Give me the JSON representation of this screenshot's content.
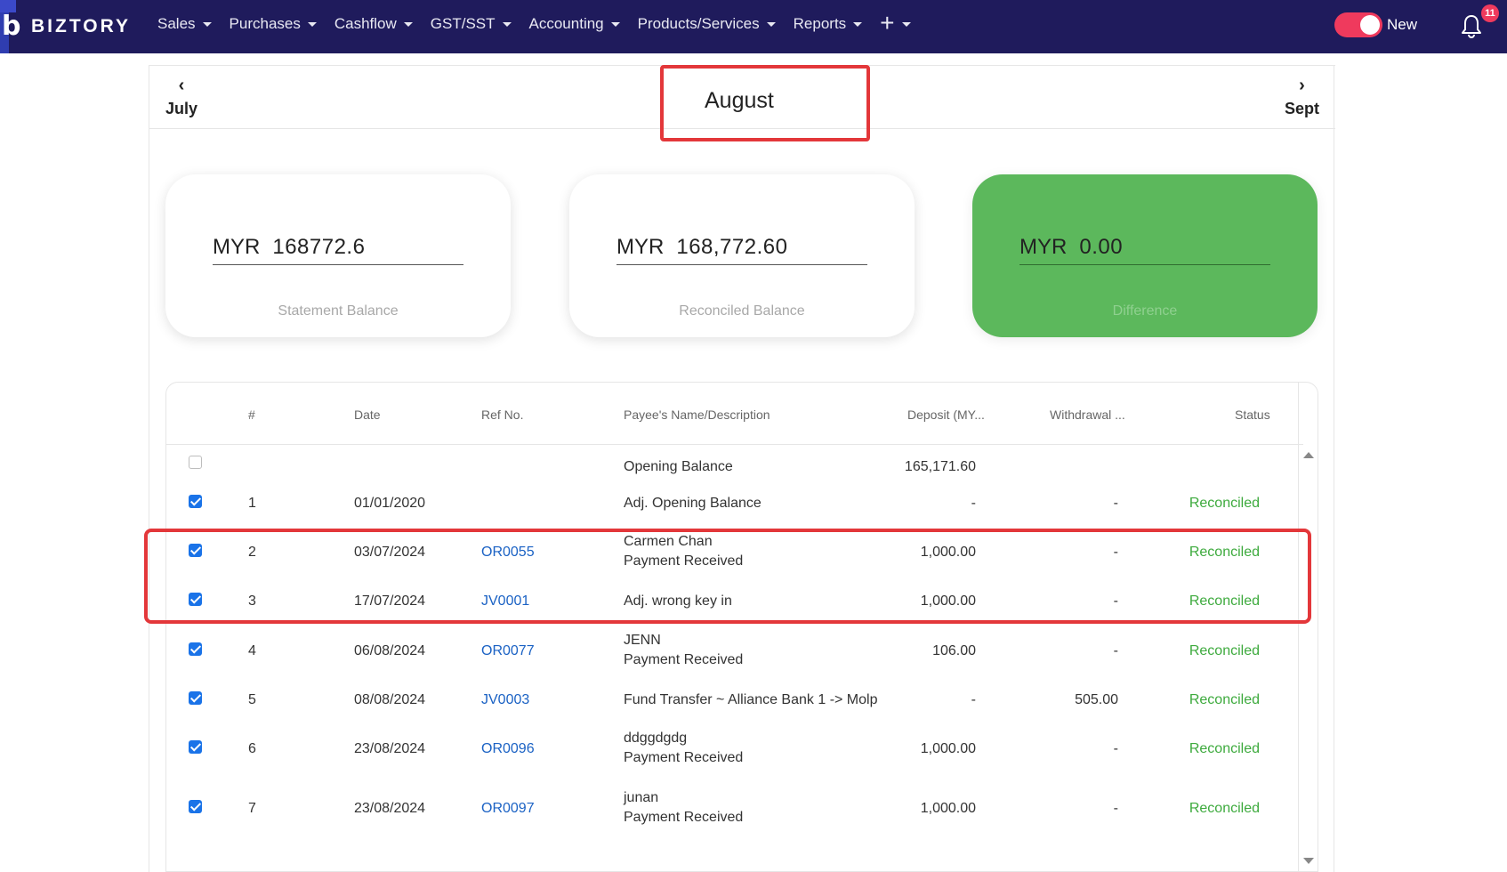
{
  "brand": {
    "name": "BIZTORY"
  },
  "nav": {
    "items": [
      {
        "label": "Sales"
      },
      {
        "label": "Purchases"
      },
      {
        "label": "Cashflow"
      },
      {
        "label": "GST/SST"
      },
      {
        "label": "Accounting"
      },
      {
        "label": "Products/Services"
      },
      {
        "label": "Reports"
      }
    ],
    "add_icon": "plus-icon",
    "toggle_label": "New",
    "notification_count": "11",
    "accent_color": "#ef3a5d",
    "bar_color": "#1f1b5c"
  },
  "months": {
    "prev": "July",
    "current": "August",
    "next": "Sept"
  },
  "cards": {
    "statement": {
      "currency": "MYR",
      "amount": "168772.6",
      "caption": "Statement Balance"
    },
    "reconciled": {
      "currency": "MYR",
      "amount": "168,772.60",
      "caption": "Reconciled Balance"
    },
    "difference": {
      "currency": "MYR",
      "amount": "0.00",
      "caption": "Difference",
      "color": "#5cb85c"
    }
  },
  "table": {
    "headers": {
      "num": "#",
      "date": "Date",
      "ref": "Ref No.",
      "payee": "Payee's Name/Description",
      "deposit": "Deposit (MY...",
      "withdrawal": "Withdrawal ...",
      "status": "Status"
    },
    "rows": [
      {
        "checked": false,
        "num": "",
        "date": "",
        "ref": "",
        "desc1": "Opening Balance",
        "desc2": "",
        "deposit": "165,171.60",
        "withdrawal": "",
        "status": ""
      },
      {
        "checked": true,
        "num": "1",
        "date": "01/01/2020",
        "ref": "",
        "desc1": "Adj. Opening Balance",
        "desc2": "",
        "deposit": "-",
        "withdrawal": "-",
        "status": "Reconciled"
      },
      {
        "checked": true,
        "num": "2",
        "date": "03/07/2024",
        "ref": "OR0055",
        "desc1": "Carmen Chan",
        "desc2": "Payment Received",
        "deposit": "1,000.00",
        "withdrawal": "-",
        "status": "Reconciled"
      },
      {
        "checked": true,
        "num": "3",
        "date": "17/07/2024",
        "ref": "JV0001",
        "desc1": "Adj. wrong key in",
        "desc2": "",
        "deposit": "1,000.00",
        "withdrawal": "-",
        "status": "Reconciled"
      },
      {
        "checked": true,
        "num": "4",
        "date": "06/08/2024",
        "ref": "OR0077",
        "desc1": "JENN",
        "desc2": "Payment Received",
        "deposit": "106.00",
        "withdrawal": "-",
        "status": "Reconciled"
      },
      {
        "checked": true,
        "num": "5",
        "date": "08/08/2024",
        "ref": "JV0003",
        "desc1": "Fund Transfer ~ Alliance Bank 1 -> Molp",
        "desc2": "",
        "deposit": "-",
        "withdrawal": "505.00",
        "status": "Reconciled"
      },
      {
        "checked": true,
        "num": "6",
        "date": "23/08/2024",
        "ref": "OR0096",
        "desc1": "ddggdgdg",
        "desc2": "Payment Received",
        "deposit": "1,000.00",
        "withdrawal": "-",
        "status": "Reconciled"
      },
      {
        "checked": true,
        "num": "7",
        "date": "23/08/2024",
        "ref": "OR0097",
        "desc1": "junan",
        "desc2": "Payment Received",
        "deposit": "1,000.00",
        "withdrawal": "-",
        "status": "Reconciled"
      }
    ]
  }
}
